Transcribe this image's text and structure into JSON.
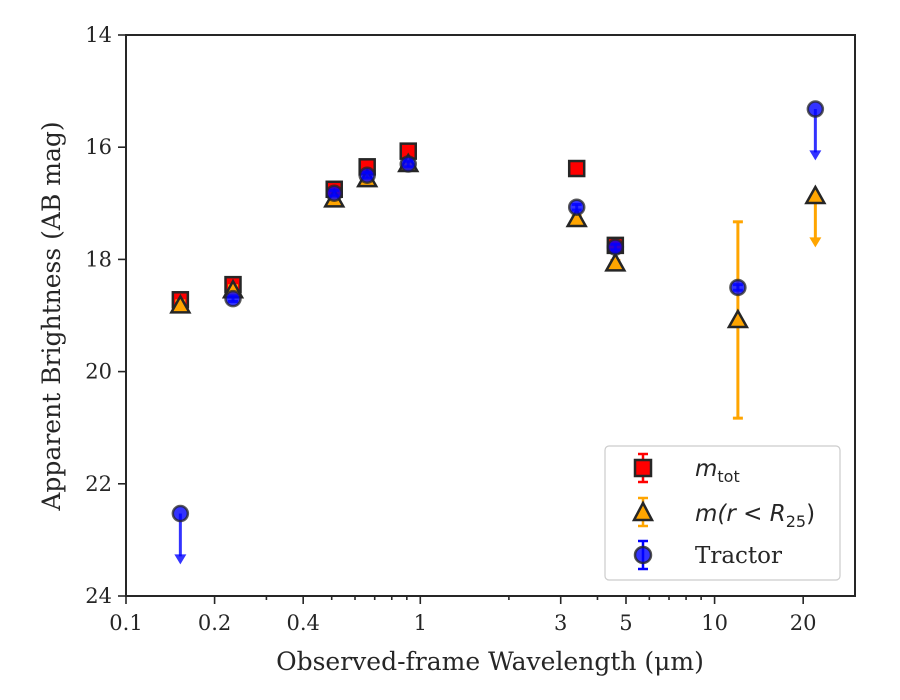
{
  "chart_data": {
    "type": "scatter",
    "title": "",
    "xlabel": "Observed-frame Wavelength (μm)",
    "ylabel": "Apparent Brightness (AB mag)",
    "xscale": "log",
    "xlim": [
      0.1,
      30
    ],
    "ylim": [
      24,
      14
    ],
    "y_inverted": true,
    "grid": false,
    "legend_position": "lower-right",
    "x_ticks": [
      0.1,
      0.2,
      0.4,
      1,
      3,
      5,
      10,
      20
    ],
    "x_tick_labels": [
      "0.1",
      "0.2",
      "0.4",
      "1",
      "3",
      "5",
      "10",
      "20"
    ],
    "y_ticks": [
      14,
      16,
      18,
      20,
      22,
      24
    ],
    "y_tick_labels": [
      "14",
      "16",
      "18",
      "20",
      "22",
      "24"
    ],
    "legend": {
      "mtot_base": "m",
      "mtot_sub": "tot",
      "mr25_label": "m(r < R",
      "mr25_sub": "25",
      "mr25_close": ")",
      "tractor_label": "Tractor"
    },
    "series": [
      {
        "key": "mtot",
        "marker": "square",
        "color": "#ff0000",
        "edge": "#262626",
        "points": [
          {
            "x": 0.153,
            "y": 18.72,
            "yerr": 0.1
          },
          {
            "x": 0.231,
            "y": 18.45,
            "yerr": 0.1
          },
          {
            "x": 0.51,
            "y": 16.75,
            "yerr": 0.06
          },
          {
            "x": 0.66,
            "y": 16.35,
            "yerr": 0.06
          },
          {
            "x": 0.91,
            "y": 16.07,
            "yerr": 0.06
          },
          {
            "x": 3.4,
            "y": 16.38,
            "yerr": 0.06
          },
          {
            "x": 4.6,
            "y": 17.75,
            "yerr": 0.06
          }
        ]
      },
      {
        "key": "mr25",
        "marker": "triangle",
        "color": "#ffa500",
        "edge": "#262626",
        "points": [
          {
            "x": 0.153,
            "y": 18.82,
            "yerr": 0.08
          },
          {
            "x": 0.231,
            "y": 18.55,
            "yerr": 0.08
          },
          {
            "x": 0.51,
            "y": 16.93,
            "yerr": 0.05
          },
          {
            "x": 0.66,
            "y": 16.57,
            "yerr": 0.05
          },
          {
            "x": 0.91,
            "y": 16.3,
            "yerr": 0.05
          },
          {
            "x": 3.4,
            "y": 17.28,
            "yerr": 0.05
          },
          {
            "x": 4.6,
            "y": 18.07,
            "yerr": 0.05
          },
          {
            "x": 12.0,
            "y": 19.08,
            "yerr_low": 1.75,
            "yerr_high": 1.75
          },
          {
            "x": 22.0,
            "y": 16.87,
            "upper_limit": true,
            "arrow_to": 17.75
          }
        ]
      },
      {
        "key": "tractor",
        "marker": "circle",
        "color": "#0000ff",
        "edge": "#262626",
        "points": [
          {
            "x": 0.153,
            "y": 22.53,
            "upper_limit": true,
            "arrow_to": 23.4
          },
          {
            "x": 0.231,
            "y": 18.7,
            "yerr": 0.05
          },
          {
            "x": 0.51,
            "y": 16.82,
            "yerr": 0.05
          },
          {
            "x": 0.66,
            "y": 16.5,
            "yerr": 0.05
          },
          {
            "x": 0.91,
            "y": 16.3,
            "yerr": 0.05
          },
          {
            "x": 3.4,
            "y": 17.07,
            "yerr": 0.05
          },
          {
            "x": 4.6,
            "y": 17.78,
            "yerr": 0.05
          },
          {
            "x": 12.0,
            "y": 18.5,
            "yerr": 0.05
          },
          {
            "x": 22.0,
            "y": 15.32,
            "upper_limit": true,
            "arrow_to": 16.2
          }
        ]
      }
    ]
  }
}
